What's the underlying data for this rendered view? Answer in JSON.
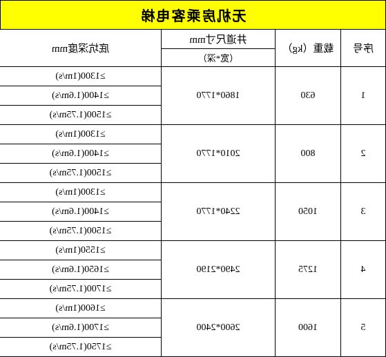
{
  "title": "无机房乘客电梯",
  "title_bg": "#ffff00",
  "headers": {
    "seq": "序号",
    "load": "载重（kg）",
    "dim": "井道尺寸mm",
    "dim_sub": "（宽*深）",
    "depth": "底坑深度mm"
  },
  "rows": [
    {
      "seq": "1",
      "load": "630",
      "dim": "1860*1770",
      "depths": [
        "≥1300(1m/s)",
        "≥1400(1.6m/s)",
        "≥1500(1.75m/s)"
      ]
    },
    {
      "seq": "2",
      "load": "800",
      "dim": "2010*1770",
      "depths": [
        "≥1300(1m/s)",
        "≥1400(1.6m/s)",
        "≥1500(1.75m/s)"
      ]
    },
    {
      "seq": "3",
      "load": "1050",
      "dim": "2240*1770",
      "depths": [
        "≥1300(1m/s)",
        "≥1400(1.6m/s)",
        "≥1500(1.75m/s)"
      ]
    },
    {
      "seq": "4",
      "load": "1275",
      "dim": "2490*2190",
      "depths": [
        "≥1550(1m/s)",
        "≥1650(1.6m/s)",
        "≥1700(1.75m/s)"
      ]
    },
    {
      "seq": "5",
      "load": "1600",
      "dim": "2600*2400",
      "depths": [
        "≥1600(1m/s)",
        "≥1700(1.6m/s)",
        "≥1750(1.75m/s)"
      ]
    }
  ]
}
